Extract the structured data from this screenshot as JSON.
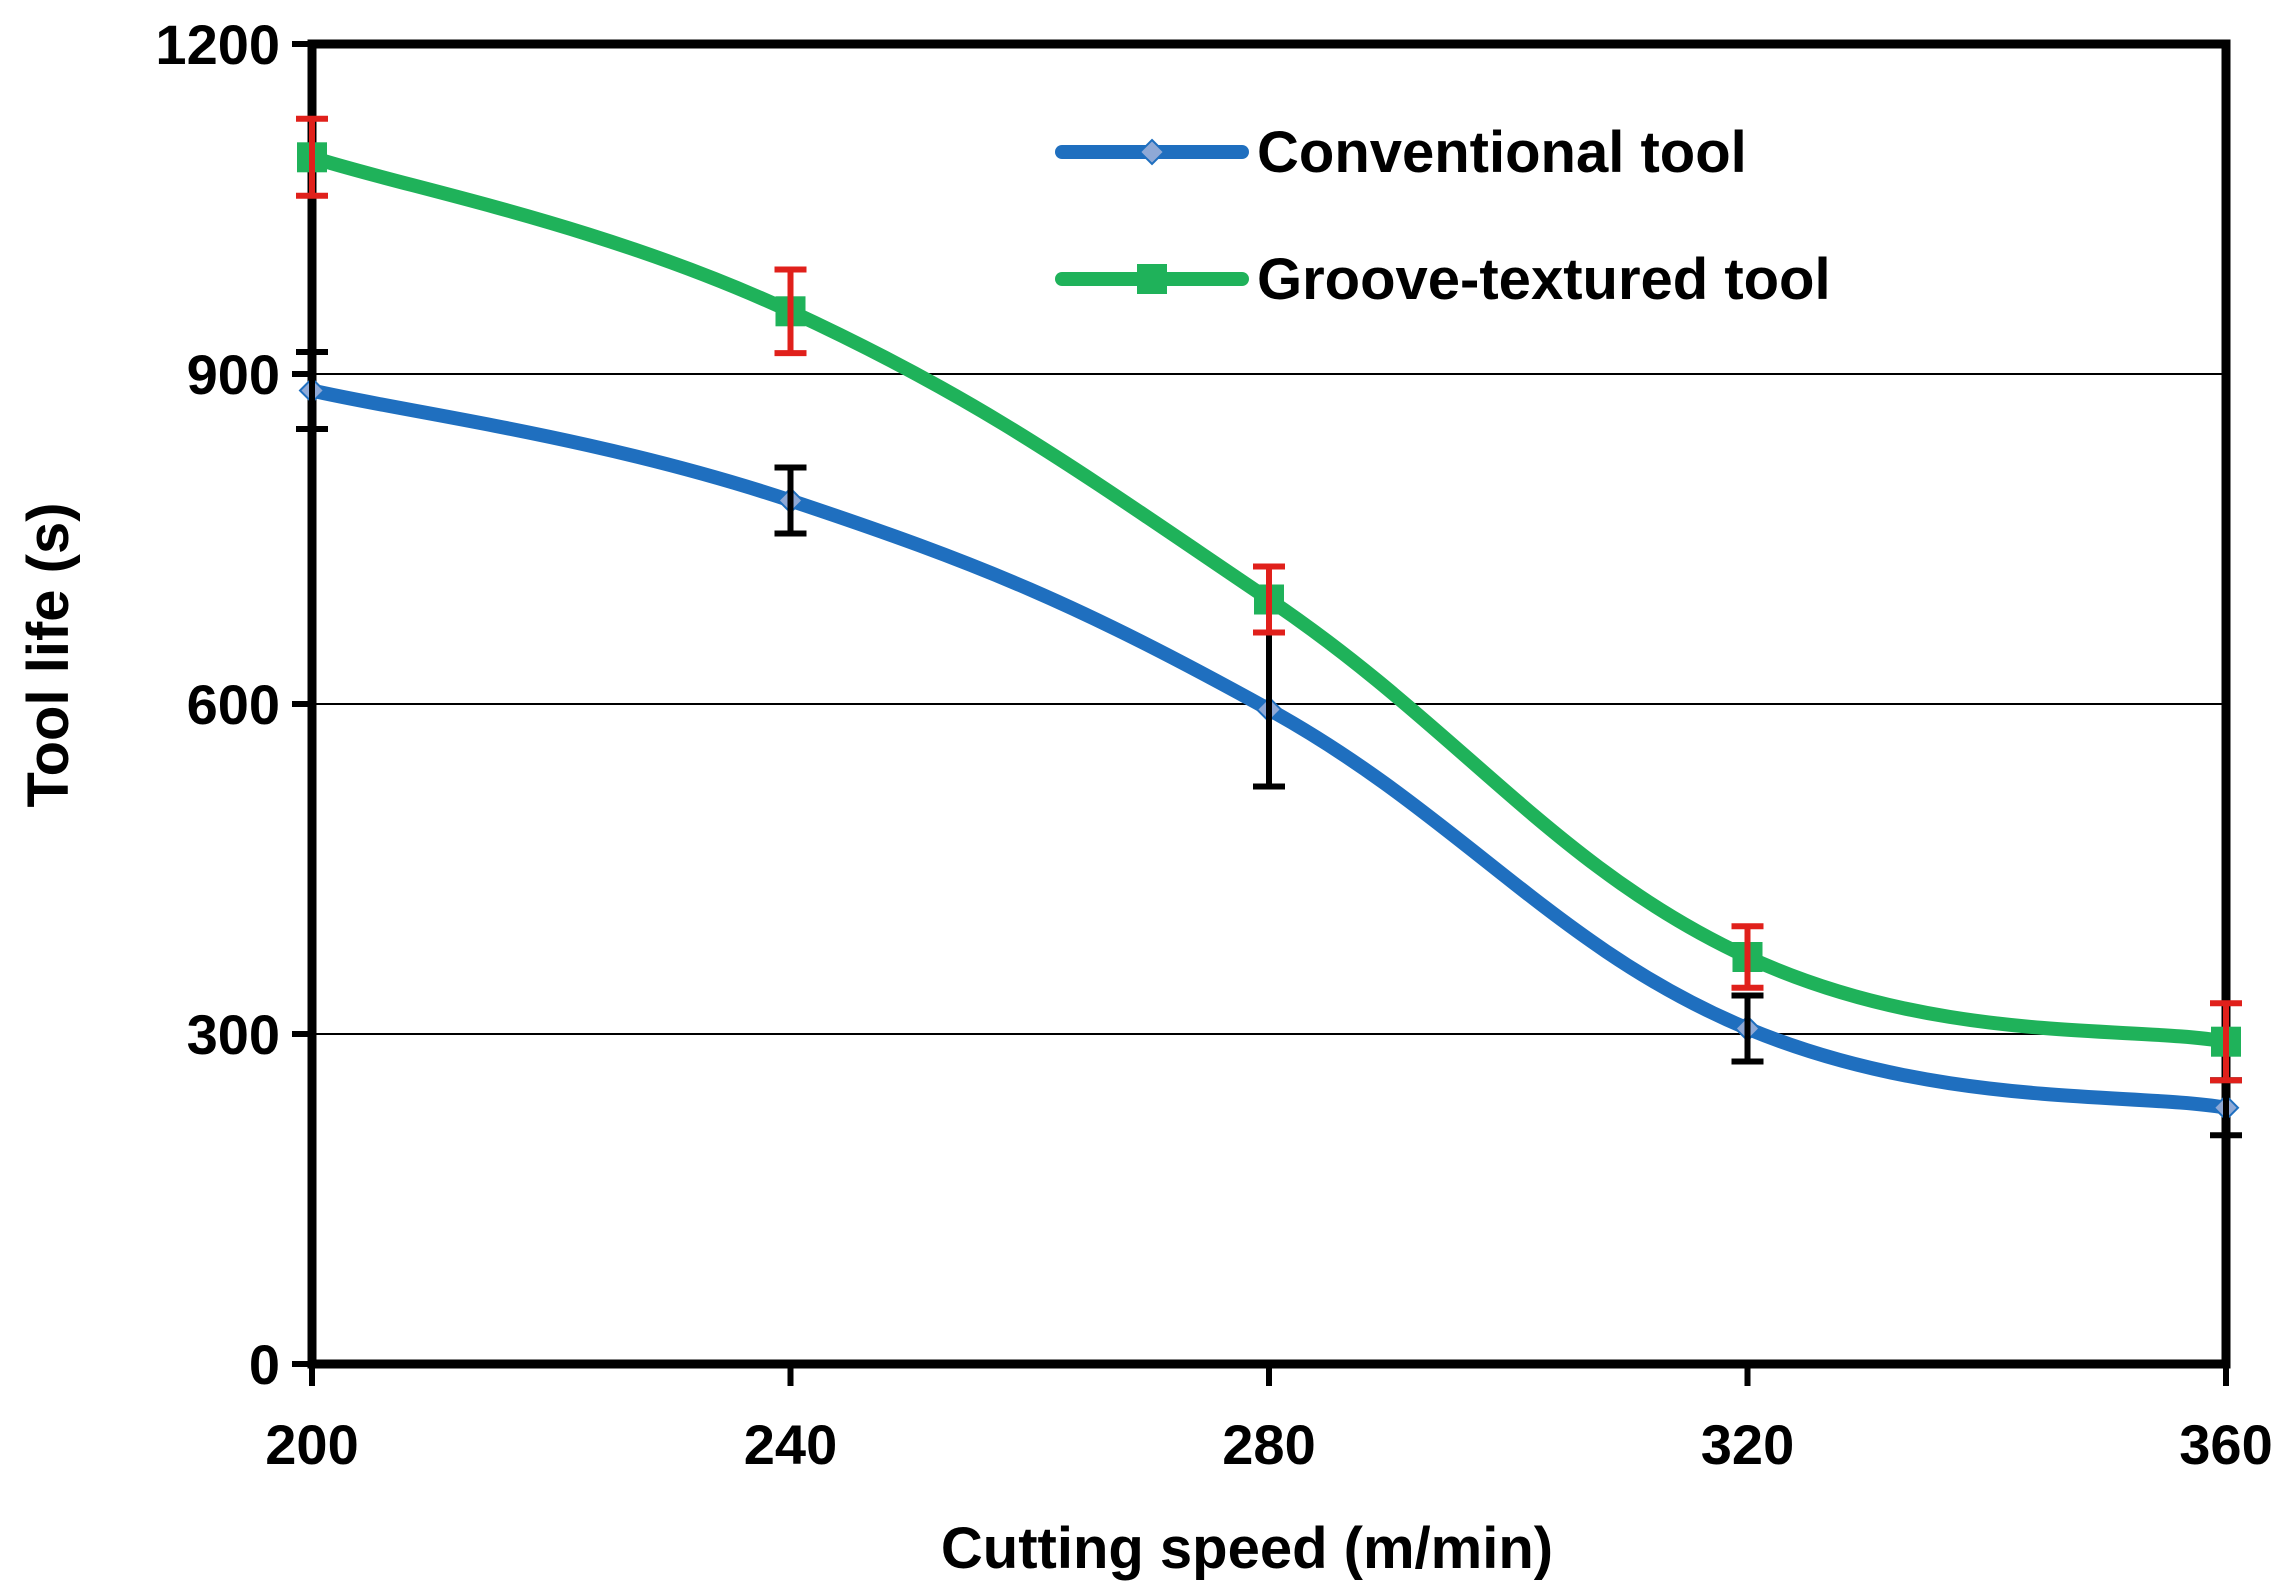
{
  "chart_data": {
    "type": "line",
    "title": "",
    "xlabel": "Cutting speed (m/min)",
    "ylabel": "Tool life (s)",
    "x": [
      200,
      240,
      280,
      320,
      360
    ],
    "xlim": [
      200,
      360
    ],
    "ylim": [
      0,
      1200
    ],
    "x_ticks": [
      200,
      240,
      280,
      320,
      360
    ],
    "y_ticks": [
      0,
      300,
      600,
      900,
      1200
    ],
    "grid": "horizontal",
    "legend_position": "top-right",
    "series": [
      {
        "name": "Conventional tool",
        "color": "#1F6FBF",
        "marker": "diamond",
        "values": [
          885,
          785,
          595,
          305,
          233
        ],
        "error": [
          35,
          30,
          70,
          30,
          25
        ],
        "error_color": "#000000"
      },
      {
        "name": "Groove-textured tool",
        "color": "#1FB25A",
        "marker": "square",
        "values": [
          1097,
          957,
          695,
          370,
          293
        ],
        "error": [
          35,
          38,
          30,
          28,
          35
        ],
        "error_color": "#E0201B"
      }
    ]
  }
}
